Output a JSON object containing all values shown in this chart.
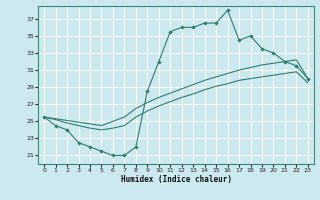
{
  "xlabel": "Humidex (Indice chaleur)",
  "bg_color": "#cce9f0",
  "grid_color": "#ffffff",
  "line_color": "#2e7d6e",
  "xlim": [
    -0.5,
    23.5
  ],
  "ylim": [
    20.0,
    38.5
  ],
  "xticks": [
    0,
    1,
    2,
    3,
    4,
    5,
    6,
    7,
    8,
    9,
    10,
    11,
    12,
    13,
    14,
    15,
    16,
    17,
    18,
    19,
    20,
    21,
    22,
    23
  ],
  "yticks": [
    21,
    23,
    25,
    27,
    29,
    31,
    33,
    35,
    37
  ],
  "line1_x": [
    0,
    1,
    2,
    3,
    4,
    5,
    6,
    7,
    8,
    9,
    10,
    11,
    12,
    13,
    14,
    15,
    16,
    17,
    18,
    19,
    20,
    21,
    22,
    23
  ],
  "line1_y": [
    25.5,
    24.5,
    24.0,
    22.5,
    22.0,
    21.5,
    21.0,
    21.0,
    22.0,
    28.5,
    32.0,
    35.5,
    36.0,
    36.0,
    36.5,
    36.5,
    38.0,
    34.5,
    35.0,
    33.5,
    33.0,
    32.0,
    31.5,
    30.0
  ],
  "line2_x": [
    0,
    1,
    2,
    3,
    4,
    5,
    6,
    7,
    8,
    9,
    10,
    11,
    12,
    13,
    14,
    15,
    16,
    17,
    18,
    19,
    20,
    21,
    22,
    23
  ],
  "line2_y": [
    25.5,
    25.3,
    25.1,
    24.9,
    24.7,
    24.5,
    25.0,
    25.5,
    26.5,
    27.2,
    27.8,
    28.3,
    28.8,
    29.3,
    29.8,
    30.2,
    30.6,
    31.0,
    31.3,
    31.6,
    31.8,
    32.0,
    32.2,
    30.0
  ],
  "line3_x": [
    0,
    1,
    2,
    3,
    4,
    5,
    6,
    7,
    8,
    9,
    10,
    11,
    12,
    13,
    14,
    15,
    16,
    17,
    18,
    19,
    20,
    21,
    22,
    23
  ],
  "line3_y": [
    25.5,
    25.2,
    24.8,
    24.5,
    24.2,
    24.0,
    24.2,
    24.5,
    25.5,
    26.2,
    26.8,
    27.3,
    27.8,
    28.2,
    28.7,
    29.1,
    29.4,
    29.8,
    30.0,
    30.2,
    30.4,
    30.6,
    30.8,
    29.5
  ]
}
